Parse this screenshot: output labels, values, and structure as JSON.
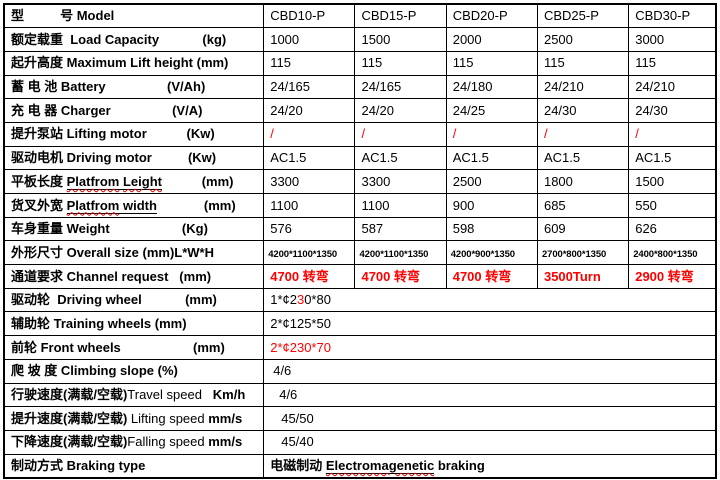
{
  "colors": {
    "accent_red": "#fe0000",
    "border": "#000000",
    "background": "#ffffff"
  },
  "table": {
    "rows": [
      {
        "name": "model",
        "label": [
          {
            "t": "型          号 Model",
            "b": true
          }
        ],
        "cells": [
          [
            {
              "t": "CBD10-P"
            }
          ],
          [
            {
              "t": "CBD15-P"
            }
          ],
          [
            {
              "t": "CBD20-P"
            }
          ],
          [
            {
              "t": "CBD25-P"
            }
          ],
          [
            {
              "t": "CBD30-P"
            }
          ]
        ]
      },
      {
        "name": "load-capacity",
        "label": [
          {
            "t": "额定载重  Load Capacity            (kg)",
            "b": true
          }
        ],
        "cells": [
          [
            {
              "t": "1000"
            }
          ],
          [
            {
              "t": "1500"
            }
          ],
          [
            {
              "t": "2000"
            }
          ],
          [
            {
              "t": "2500"
            }
          ],
          [
            {
              "t": "3000"
            }
          ]
        ]
      },
      {
        "name": "lift-height",
        "label": [
          {
            "t": "起升高度 Maximum Lift height (mm)",
            "b": true
          }
        ],
        "cells": [
          [
            {
              "t": "115"
            }
          ],
          [
            {
              "t": "115"
            }
          ],
          [
            {
              "t": "115"
            }
          ],
          [
            {
              "t": "115"
            }
          ],
          [
            {
              "t": "115"
            }
          ]
        ]
      },
      {
        "name": "battery",
        "label": [
          {
            "t": "蓄 电 池 Battery                 (V/Ah)",
            "b": true
          }
        ],
        "cells": [
          [
            {
              "t": "24/165"
            }
          ],
          [
            {
              "t": "24/165"
            }
          ],
          [
            {
              "t": "24/180"
            }
          ],
          [
            {
              "t": "24/210"
            }
          ],
          [
            {
              "t": "24/210"
            }
          ]
        ]
      },
      {
        "name": "charger",
        "label": [
          {
            "t": "充 电 器 Charger                 (V/A)",
            "b": true
          }
        ],
        "cells": [
          [
            {
              "t": "24/20"
            }
          ],
          [
            {
              "t": "24/20"
            }
          ],
          [
            {
              "t": "24/25"
            }
          ],
          [
            {
              "t": "24/30"
            }
          ],
          [
            {
              "t": "24/30"
            }
          ]
        ]
      },
      {
        "name": "lifting-motor",
        "label": [
          {
            "t": "提升泵站 Lifting motor           (Kw)",
            "b": true
          }
        ],
        "cells": [
          [
            {
              "t": "/",
              "red": true
            }
          ],
          [
            {
              "t": "/",
              "red": true
            }
          ],
          [
            {
              "t": "/",
              "red": true
            }
          ],
          [
            {
              "t": "/",
              "red": true
            }
          ],
          [
            {
              "t": "/",
              "red": true
            }
          ]
        ]
      },
      {
        "name": "driving-motor",
        "label": [
          {
            "t": "驱动电机 Driving motor          (Kw)",
            "b": true
          }
        ],
        "cells": [
          [
            {
              "t": "AC1.5"
            }
          ],
          [
            {
              "t": "AC1.5"
            }
          ],
          [
            {
              "t": "AC1.5"
            }
          ],
          [
            {
              "t": "AC1.5"
            }
          ],
          [
            {
              "t": "AC1.5"
            }
          ]
        ]
      },
      {
        "name": "platform-length",
        "label": [
          {
            "t": "平板长度 ",
            "b": true
          },
          {
            "t": "Platfrom",
            "b": true,
            "ul": true,
            "wavy": true
          },
          {
            "t": " ",
            "b": true,
            "ul": true
          },
          {
            "t": "Leight",
            "b": true,
            "ul": true,
            "wavy": true
          },
          {
            "t": "           (mm)",
            "b": true
          }
        ],
        "cells": [
          [
            {
              "t": "3300"
            }
          ],
          [
            {
              "t": "3300"
            }
          ],
          [
            {
              "t": "2500"
            }
          ],
          [
            {
              "t": "1800"
            }
          ],
          [
            {
              "t": "1500"
            }
          ]
        ]
      },
      {
        "name": "platform-width",
        "label": [
          {
            "t": "货叉外宽 ",
            "b": true
          },
          {
            "t": "Platfrom",
            "b": true,
            "ul": true,
            "wavy": true
          },
          {
            "t": " ",
            "b": true,
            "ul": true
          },
          {
            "t": "width",
            "b": true,
            "ul": true
          },
          {
            "t": "             (mm)",
            "b": true
          }
        ],
        "cells": [
          [
            {
              "t": "1100"
            }
          ],
          [
            {
              "t": "1100"
            }
          ],
          [
            {
              "t": "900"
            }
          ],
          [
            {
              "t": "685"
            }
          ],
          [
            {
              "t": "550"
            }
          ]
        ]
      },
      {
        "name": "weight",
        "label": [
          {
            "t": "车身重量 Weight                    (Kg)",
            "b": true
          }
        ],
        "cells": [
          [
            {
              "t": "576"
            }
          ],
          [
            {
              "t": "587"
            }
          ],
          [
            {
              "t": "598"
            }
          ],
          [
            {
              "t": "609"
            }
          ],
          [
            {
              "t": "626"
            }
          ]
        ]
      },
      {
        "name": "overall-size",
        "label": [
          {
            "t": "外形尺寸 Overall size (mm)L*W*H",
            "b": true
          }
        ],
        "cells": [
          [
            {
              "t": "4200*1100*1350",
              "b": true,
              "small": true
            }
          ],
          [
            {
              "t": "4200*1100*1350",
              "b": true,
              "small": true
            }
          ],
          [
            {
              "t": "4200*900*1350",
              "b": true,
              "small": true
            }
          ],
          [
            {
              "t": "2700*800*1350",
              "b": true,
              "small": true
            }
          ],
          [
            {
              "t": "2400*800*1350",
              "b": true,
              "small": true
            }
          ]
        ]
      },
      {
        "name": "channel-request",
        "label": [
          {
            "t": "通道要求 Channel request   (mm)",
            "b": true
          }
        ],
        "cells": [
          [
            {
              "t": "4700 转弯",
              "b": true,
              "red": true
            }
          ],
          [
            {
              "t": "4700 转弯",
              "b": true,
              "red": true
            }
          ],
          [
            {
              "t": "4700 转弯",
              "b": true,
              "red": true
            }
          ],
          [
            {
              "t": "3500Turn",
              "b": true,
              "red": true
            }
          ],
          [
            {
              "t": "2900 转弯",
              "b": true,
              "red": true
            }
          ]
        ]
      },
      {
        "name": "driving-wheel",
        "label": [
          {
            "t": "驱动轮  Driving wheel            (mm)",
            "b": true
          }
        ],
        "merged": [
          {
            "t": "1*¢2"
          },
          {
            "t": "3",
            "red": true
          },
          {
            "t": "0*80"
          }
        ]
      },
      {
        "name": "training-wheels",
        "label": [
          {
            "t": "辅助轮 Training wheels (mm)",
            "b": true
          }
        ],
        "merged": [
          {
            "t": "2*¢125*50"
          }
        ]
      },
      {
        "name": "front-wheels",
        "label": [
          {
            "t": "前轮 Front wheels                    (mm)",
            "b": true
          }
        ],
        "merged": [
          {
            "t": "2*¢230*70",
            "red": true
          }
        ]
      },
      {
        "name": "climbing-slope",
        "label": [
          {
            "t": "爬 坡 度 Climbing slope (%)",
            "b": true
          }
        ],
        "merged": [
          {
            "t": "4/6"
          }
        ]
      },
      {
        "name": "travel-speed",
        "label": [
          {
            "t": "行驶速度(满载/空载)",
            "b": true
          },
          {
            "t": "Travel speed"
          },
          {
            "t": "   Km/h",
            "b": true
          }
        ],
        "merged": [
          {
            "t": "4/6"
          }
        ]
      },
      {
        "name": "lifting-speed",
        "label": [
          {
            "t": "提升速度(满载/空载)",
            "b": true
          },
          {
            "t": " Lifting speed "
          },
          {
            "t": "mm/s",
            "b": true
          }
        ],
        "merged": [
          {
            "t": "45/50"
          }
        ]
      },
      {
        "name": "falling-speed",
        "label": [
          {
            "t": "下降速度(满载/空载)",
            "b": true
          },
          {
            "t": "Falling speed "
          },
          {
            "t": "mm/s",
            "b": true
          }
        ],
        "merged": [
          {
            "t": "45/40"
          }
        ]
      },
      {
        "name": "braking-type",
        "label": [
          {
            "t": "制动方式 Braking type",
            "b": true
          }
        ],
        "merged": [
          {
            "t": "电磁制动 ",
            "b": true
          },
          {
            "t": "Electromagenetic",
            "b": true,
            "ul": true,
            "wavy": true
          },
          {
            "t": " braking",
            "b": true
          }
        ]
      }
    ]
  }
}
